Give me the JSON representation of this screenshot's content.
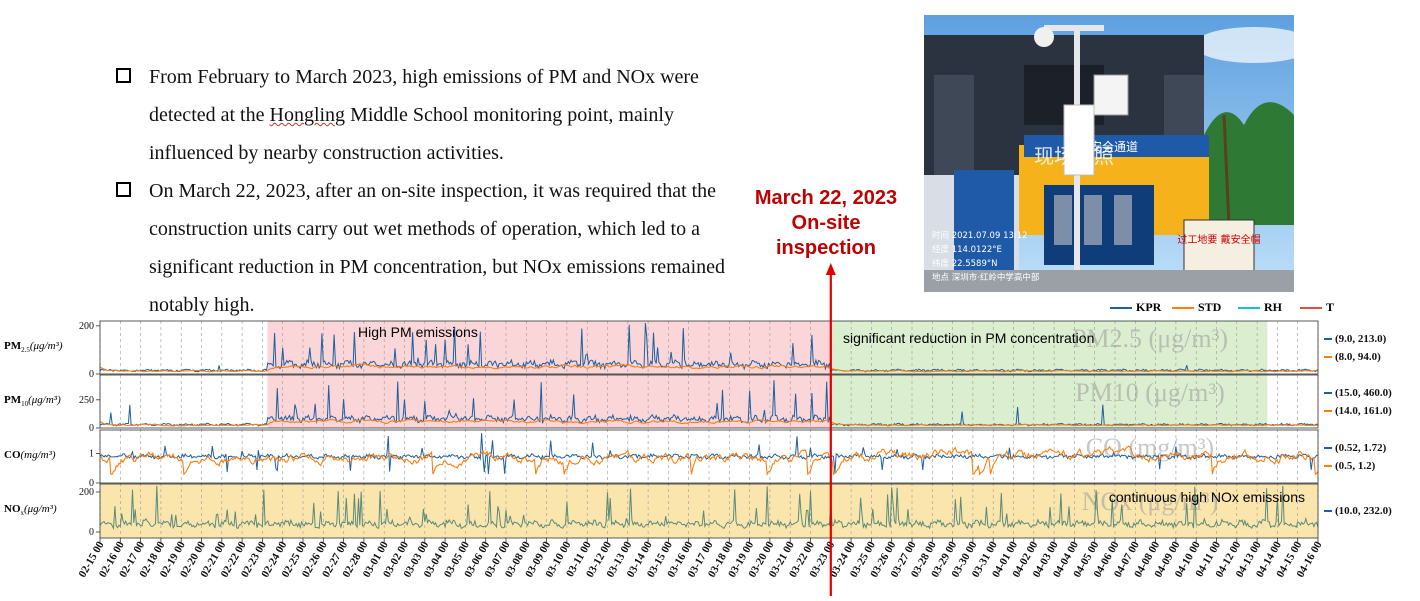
{
  "bullets": [
    {
      "pre": "From February to March 2023, high emissions of PM and NOx were detected at the ",
      "underlined": "Hongling",
      "post": " Middle School monitoring point, mainly influenced by nearby construction activities."
    },
    {
      "pre": "On March 22, 2023, after an on-site inspection, it was required that the construction units carry out wet methods of operation, which led to a significant reduction in PM concentration, but NOx emissions remained notably high.",
      "underlined": "",
      "post": ""
    }
  ],
  "callout": {
    "line1": "March 22, 2023",
    "line2": "On-site",
    "line3": "inspection"
  },
  "photo": {
    "watermark": "现场拍照",
    "sign_text": "安全通道",
    "info_lines": [
      "时间   2021.07.09  13:12",
      "经度   114.0122°E",
      "纬度   22.5589°N",
      "地点   深圳市·红岭中学高中部"
    ],
    "board_text": "过工地要 戴安全帽"
  },
  "chart_data": {
    "type": "line",
    "legend": [
      {
        "name": "KPR",
        "color": "#1f5fa0"
      },
      {
        "name": "STD",
        "color": "#ff7f0e"
      },
      {
        "name": "RH",
        "color": "#17becf"
      },
      {
        "name": "T",
        "color": "#e74c3c"
      }
    ],
    "x_ticks": [
      "02-15 00",
      "02-16 00",
      "02-17 00",
      "02-18 00",
      "02-19 00",
      "02-20 00",
      "02-21 00",
      "02-22 00",
      "02-23 00",
      "02-24 00",
      "02-25 00",
      "02-26 00",
      "02-27 00",
      "02-28 00",
      "03-01 00",
      "03-02 00",
      "03-03 00",
      "03-04 00",
      "03-05 00",
      "03-06 00",
      "03-07 00",
      "03-08 00",
      "03-09 00",
      "03-10 00",
      "03-11 00",
      "03-12 00",
      "03-13 00",
      "03-14 00",
      "03-15 00",
      "03-16 00",
      "03-17 00",
      "03-18 00",
      "03-19 00",
      "03-20 00",
      "03-21 00",
      "03-22 00",
      "03-23 00",
      "03-24 00",
      "03-25 00",
      "03-26 00",
      "03-27 00",
      "03-28 00",
      "03-29 00",
      "03-30 00",
      "03-31 00",
      "04-01 00",
      "04-02 00",
      "04-03 00",
      "04-04 00",
      "04-05 00",
      "04-06 00",
      "04-07 00",
      "04-08 00",
      "04-09 00",
      "04-10 00",
      "04-11 00",
      "04-12 00",
      "04-13 00",
      "04-14 00",
      "04-15 00",
      "04-16 00"
    ],
    "inspection_date": "03-22",
    "panels": [
      {
        "id": "pm25",
        "label_main": "PM",
        "label_sub": "2.5",
        "label_unit": "(μg/m³)",
        "ghost": "PM2.5 (μg/m³)",
        "yticks": [
          0,
          200
        ],
        "ylim": [
          0,
          220
        ],
        "kpr_range": "(9.0, 213.0)",
        "std_range": "(8.0, 94.0)",
        "kpr_baseline_high": 40,
        "kpr_baseline_low": 15,
        "kpr_peak_max": 213,
        "std_baseline_high": 30,
        "std_baseline_low": 12
      },
      {
        "id": "pm10",
        "label_main": "PM",
        "label_sub": "10",
        "label_unit": "(μg/m³)",
        "ghost": "PM10 (μg/m³)",
        "yticks": [
          0,
          250
        ],
        "ylim": [
          0,
          470
        ],
        "kpr_range": "(15.0, 460.0)",
        "std_range": "(14.0, 161.0)",
        "kpr_baseline_high": 80,
        "kpr_baseline_low": 30,
        "kpr_peak_max": 460,
        "std_baseline_high": 60,
        "std_baseline_low": 25
      },
      {
        "id": "co",
        "label_main": "CO",
        "label_sub": "",
        "label_unit": "(mg/m³)",
        "ghost": "CO (mg/m³)",
        "yticks": [
          0,
          1
        ],
        "ylim": [
          0,
          1.8
        ],
        "kpr_range": "(0.52, 1.72)",
        "std_range": "(0.5, 1.2)",
        "kpr_baseline_high": 0.9,
        "kpr_baseline_low": 0.8,
        "kpr_peak_max": 1.72,
        "std_baseline_high": 0.85,
        "std_baseline_low": 0.95
      },
      {
        "id": "nox",
        "label_main": "NO",
        "label_sub": "x",
        "label_unit": "(μg/m³)",
        "ghost": "NOx (μg/m³)",
        "yticks": [
          0,
          200
        ],
        "ylim": [
          -30,
          240
        ],
        "kpr_range": "(10.0, 232.0)",
        "std_range": "",
        "kpr_baseline_high": 40,
        "kpr_baseline_low": 40,
        "kpr_peak_max": 232,
        "std_baseline_high": 0,
        "std_baseline_low": 0
      }
    ],
    "annotations": {
      "high_pm": "High PM emissions",
      "reduction": "significant reduction in PM concentration",
      "nox_high": "continuous high NOx emissions"
    },
    "shading": {
      "high_pm": {
        "start": "02-23 06",
        "end": "03-23 00",
        "color": "#f8c8cc"
      },
      "reduction": {
        "start": "03-23 00",
        "end": "04-13 12",
        "color": "#d6ebc8"
      },
      "nox": {
        "start": "02-15 00",
        "end": "04-16 00",
        "color": "#f9e3a4"
      }
    }
  }
}
